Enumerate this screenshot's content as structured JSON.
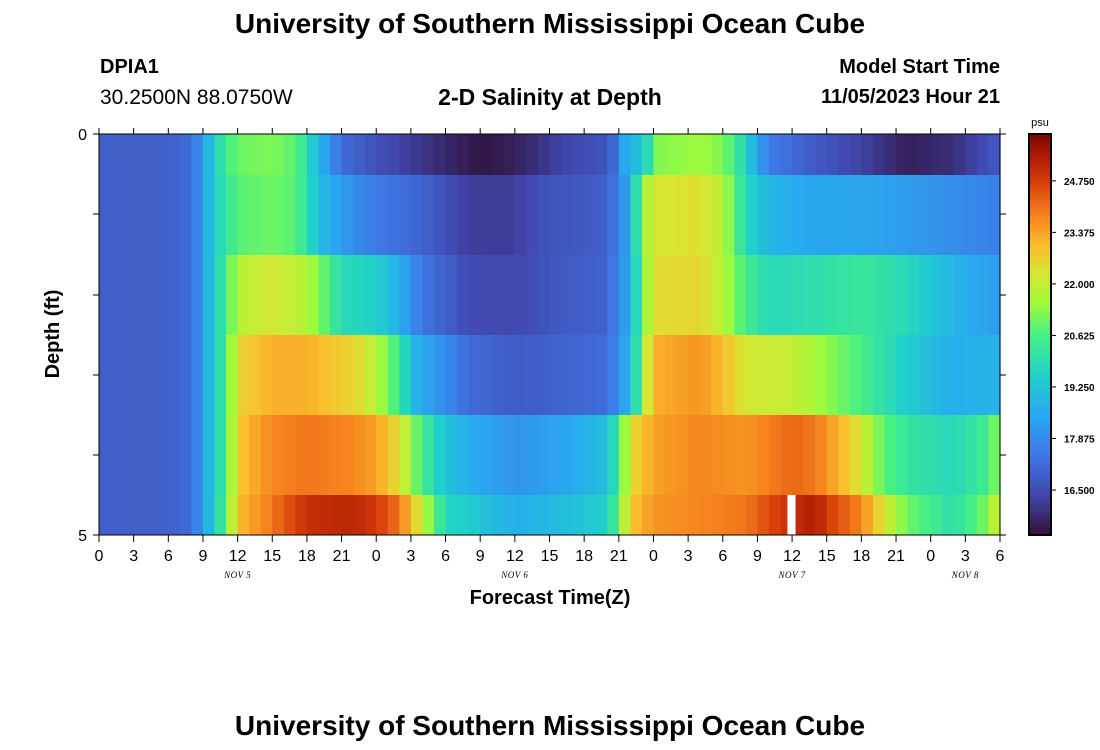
{
  "header": {
    "title": "University of Southern Mississippi Ocean Cube",
    "station_id": "DPIA1",
    "coords": "30.2500N  88.0750W",
    "subtitle": "2-D Salinity at Depth",
    "model_start_label": "Model Start Time",
    "model_start_value": "11/05/2023 Hour 21"
  },
  "footer": {
    "title": "University of Southern Mississippi Ocean Cube"
  },
  "chart_data": {
    "type": "heatmap",
    "title": "2-D Salinity at Depth",
    "xlabel": "Forecast Time(Z)",
    "ylabel": "Depth (ft)",
    "xlim_hours": [
      0,
      78
    ],
    "ylim": [
      0,
      5
    ],
    "x_tick_labels": [
      "0",
      "3",
      "6",
      "9",
      "12",
      "15",
      "18",
      "21",
      "0",
      "3",
      "6",
      "9",
      "12",
      "15",
      "18",
      "21",
      "0",
      "3",
      "6",
      "9",
      "12",
      "15",
      "18",
      "21",
      "0",
      "3",
      "6"
    ],
    "y_tick_labels": [
      "0",
      "5"
    ],
    "date_labels": [
      {
        "text": "NOV 5",
        "hour": 12
      },
      {
        "text": "NOV 6",
        "hour": 36
      },
      {
        "text": "NOV 7",
        "hour": 60
      },
      {
        "text": "NOV 8",
        "hour": 75
      }
    ],
    "colorbar": {
      "unit": "psu",
      "min": 15.3,
      "max": 26.0,
      "tick_values": [
        "24.750",
        "23.375",
        "22.000",
        "20.625",
        "19.250",
        "17.875",
        "16.500"
      ]
    },
    "rows": [
      {
        "depth_band": "0-0.5",
        "keyframes": [
          [
            0,
            16.9
          ],
          [
            6,
            16.9
          ],
          [
            8,
            17.2
          ],
          [
            9,
            18.2
          ],
          [
            10,
            19.5
          ],
          [
            11,
            20.5
          ],
          [
            12,
            21.0
          ],
          [
            15,
            21.2
          ],
          [
            17,
            20.8
          ],
          [
            18,
            20.0
          ],
          [
            19,
            18.8
          ],
          [
            21,
            17.2
          ],
          [
            24,
            16.6
          ],
          [
            29,
            15.9
          ],
          [
            33,
            15.4
          ],
          [
            36,
            15.6
          ],
          [
            40,
            16.3
          ],
          [
            44,
            16.7
          ],
          [
            45,
            17.5
          ],
          [
            46,
            19.5
          ],
          [
            47,
            18.6
          ],
          [
            48,
            21.2
          ],
          [
            52,
            21.5
          ],
          [
            54,
            21.2
          ],
          [
            55,
            20.5
          ],
          [
            56,
            19.6
          ],
          [
            57,
            18.4
          ],
          [
            58,
            17.5
          ],
          [
            62,
            16.8
          ],
          [
            66,
            16.3
          ],
          [
            70,
            15.6
          ],
          [
            74,
            15.9
          ],
          [
            78,
            16.8
          ]
        ]
      },
      {
        "depth_band": "0.5-1.5",
        "keyframes": [
          [
            0,
            16.9
          ],
          [
            6,
            16.9
          ],
          [
            8,
            17.2
          ],
          [
            9,
            18.2
          ],
          [
            10,
            19.5
          ],
          [
            12,
            20.8
          ],
          [
            15,
            21.0
          ],
          [
            17,
            20.8
          ],
          [
            18,
            20.0
          ],
          [
            19,
            19.0
          ],
          [
            21,
            18.2
          ],
          [
            24,
            17.5
          ],
          [
            28,
            17.0
          ],
          [
            32,
            16.2
          ],
          [
            36,
            16.2
          ],
          [
            38,
            16.6
          ],
          [
            44,
            16.9
          ],
          [
            46,
            18.5
          ],
          [
            47,
            21.5
          ],
          [
            48,
            22.2
          ],
          [
            52,
            22.4
          ],
          [
            54,
            21.8
          ],
          [
            55,
            20.8
          ],
          [
            56,
            19.8
          ],
          [
            58,
            18.8
          ],
          [
            62,
            18.4
          ],
          [
            66,
            18.4
          ],
          [
            70,
            18.2
          ],
          [
            74,
            17.9
          ],
          [
            78,
            17.6
          ]
        ]
      },
      {
        "depth_band": "1.5-2.5",
        "keyframes": [
          [
            0,
            16.9
          ],
          [
            6,
            16.9
          ],
          [
            8,
            17.2
          ],
          [
            9,
            18.2
          ],
          [
            10,
            19.5
          ],
          [
            11,
            20.5
          ],
          [
            12,
            21.8
          ],
          [
            15,
            22.2
          ],
          [
            18,
            21.8
          ],
          [
            20,
            20.6
          ],
          [
            21,
            19.8
          ],
          [
            24,
            19.6
          ],
          [
            26,
            18.6
          ],
          [
            28,
            17.4
          ],
          [
            32,
            16.5
          ],
          [
            36,
            16.4
          ],
          [
            40,
            16.8
          ],
          [
            44,
            17.0
          ],
          [
            46,
            18.6
          ],
          [
            47,
            21.0
          ],
          [
            48,
            22.4
          ],
          [
            52,
            22.6
          ],
          [
            54,
            21.8
          ],
          [
            56,
            20.5
          ],
          [
            58,
            19.8
          ],
          [
            62,
            20.0
          ],
          [
            66,
            20.3
          ],
          [
            70,
            19.8
          ],
          [
            74,
            18.8
          ],
          [
            78,
            18.2
          ]
        ]
      },
      {
        "depth_band": "2.5-3.5",
        "keyframes": [
          [
            0,
            16.9
          ],
          [
            6,
            16.9
          ],
          [
            8,
            17.2
          ],
          [
            9,
            18.2
          ],
          [
            10,
            19.5
          ],
          [
            11,
            20.5
          ],
          [
            12,
            22.6
          ],
          [
            15,
            23.2
          ],
          [
            18,
            23.2
          ],
          [
            22,
            22.6
          ],
          [
            24,
            21.8
          ],
          [
            26,
            20.4
          ],
          [
            27,
            19.0
          ],
          [
            28,
            18.5
          ],
          [
            32,
            17.2
          ],
          [
            36,
            16.8
          ],
          [
            40,
            17.0
          ],
          [
            44,
            17.2
          ],
          [
            46,
            18.8
          ],
          [
            47,
            21.2
          ],
          [
            48,
            23.2
          ],
          [
            52,
            23.6
          ],
          [
            54,
            23.0
          ],
          [
            56,
            22.2
          ],
          [
            60,
            22.0
          ],
          [
            62,
            21.6
          ],
          [
            66,
            20.6
          ],
          [
            70,
            19.4
          ],
          [
            74,
            18.6
          ],
          [
            78,
            18.8
          ]
        ]
      },
      {
        "depth_band": "3.5-4.5",
        "keyframes": [
          [
            0,
            16.9
          ],
          [
            6,
            16.9
          ],
          [
            8,
            17.2
          ],
          [
            9,
            18.2
          ],
          [
            10,
            19.5
          ],
          [
            11,
            20.5
          ],
          [
            12,
            22.8
          ],
          [
            15,
            23.8
          ],
          [
            18,
            24.0
          ],
          [
            22,
            23.8
          ],
          [
            24,
            23.4
          ],
          [
            26,
            22.4
          ],
          [
            28,
            20.5
          ],
          [
            30,
            19.2
          ],
          [
            32,
            18.6
          ],
          [
            36,
            18.0
          ],
          [
            40,
            18.4
          ],
          [
            44,
            19.0
          ],
          [
            45,
            20.5
          ],
          [
            46,
            22.4
          ],
          [
            48,
            23.4
          ],
          [
            52,
            23.8
          ],
          [
            56,
            23.6
          ],
          [
            60,
            24.2
          ],
          [
            62,
            24.0
          ],
          [
            64,
            23.2
          ],
          [
            66,
            22.2
          ],
          [
            68,
            20.8
          ],
          [
            70,
            20.2
          ],
          [
            74,
            19.8
          ],
          [
            77,
            20.5
          ],
          [
            78,
            21.5
          ]
        ]
      },
      {
        "depth_band": "4.5-5",
        "keyframes": [
          [
            0,
            16.9
          ],
          [
            6,
            16.9
          ],
          [
            8,
            17.2
          ],
          [
            9,
            18.2
          ],
          [
            10,
            19.5
          ],
          [
            11,
            20.8
          ],
          [
            12,
            23.0
          ],
          [
            15,
            24.0
          ],
          [
            18,
            25.0
          ],
          [
            22,
            25.2
          ],
          [
            24,
            24.8
          ],
          [
            26,
            24.0
          ],
          [
            28,
            22.0
          ],
          [
            29,
            20.8
          ],
          [
            30,
            19.8
          ],
          [
            32,
            19.4
          ],
          [
            36,
            18.6
          ],
          [
            40,
            19.0
          ],
          [
            44,
            19.5
          ],
          [
            45,
            21.0
          ],
          [
            46,
            22.8
          ],
          [
            48,
            23.6
          ],
          [
            52,
            23.8
          ],
          [
            56,
            24.0
          ],
          [
            59,
            24.8
          ],
          [
            60,
            25.0
          ],
          [
            62,
            25.4
          ],
          [
            63,
            24.8
          ],
          [
            66,
            23.8
          ],
          [
            68,
            22.2
          ],
          [
            70,
            21.0
          ],
          [
            74,
            20.0
          ],
          [
            77,
            21.2
          ],
          [
            78,
            22.5
          ]
        ]
      }
    ],
    "missing_data": {
      "hour_start": 59.6,
      "hour_end": 60.3,
      "depth_band": "4.5-5"
    }
  }
}
